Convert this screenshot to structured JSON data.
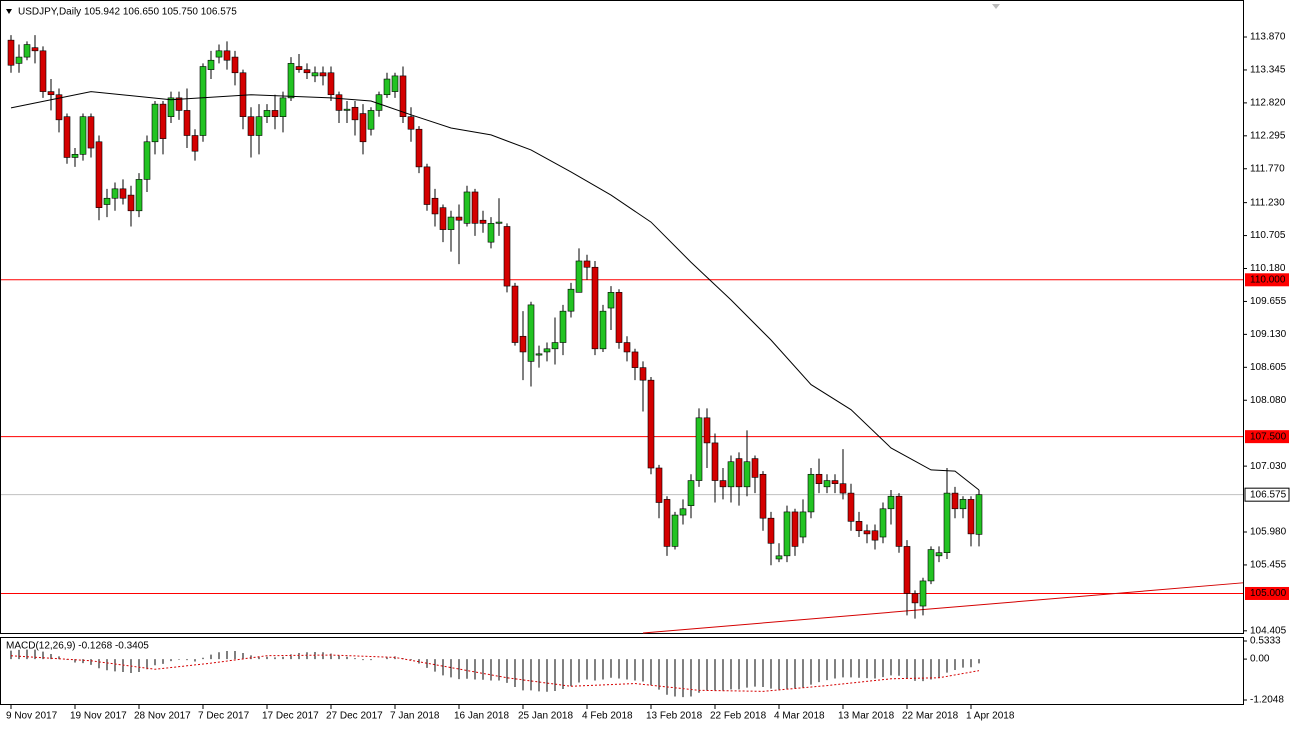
{
  "chart_data": {
    "type": "candlestick",
    "header": "USDJPY,Daily 105.942 106.650 105.750 106.575",
    "up_color": "#22c322",
    "down_color": "#d40000",
    "ma_color": "#000000",
    "open": [
      113.82,
      113.45,
      113.55,
      113.7,
      113.65,
      113.0,
      112.95,
      112.6,
      111.95,
      112.0,
      112.6,
      112.2,
      111.2,
      111.3,
      111.45,
      111.35,
      111.1,
      111.6,
      112.2,
      112.8,
      112.6,
      112.9,
      112.7,
      112.3,
      112.3,
      113.35,
      113.55,
      113.65,
      113.55,
      113.3,
      112.6,
      112.3,
      112.6,
      112.7,
      112.6,
      112.9,
      113.4,
      113.35,
      113.25,
      113.3,
      113.3,
      112.95,
      112.7,
      112.75,
      112.65,
      112.4,
      112.7,
      112.95,
      113.0,
      113.25,
      112.6,
      112.4,
      111.8,
      111.3,
      111.15,
      110.8,
      111.0,
      110.9,
      111.4,
      110.95,
      110.6,
      110.9,
      110.85,
      109.9,
      109.1,
      108.7,
      108.8,
      108.85,
      108.9,
      109.0,
      109.5,
      109.8,
      110.3,
      110.2,
      108.9,
      109.55,
      109.8,
      109.0,
      108.85,
      108.6,
      108.4,
      107.0,
      106.5,
      105.75,
      106.25,
      106.4,
      106.8,
      107.8,
      107.4,
      106.8,
      106.7,
      107.15,
      106.7,
      107.15,
      106.9,
      106.2,
      105.55,
      105.6,
      106.3,
      105.9,
      106.3,
      106.9,
      106.7,
      106.8,
      106.75,
      106.6,
      106.15,
      106.0,
      106.0,
      105.9,
      106.35,
      106.55,
      105.75,
      105.0,
      104.8,
      105.2,
      105.6,
      105.65,
      106.6,
      106.35,
      106.5,
      105.942
    ],
    "high": [
      113.9,
      113.75,
      113.8,
      113.9,
      113.72,
      113.2,
      113.05,
      112.65,
      112.1,
      112.65,
      112.65,
      112.3,
      111.45,
      111.55,
      111.6,
      111.5,
      111.7,
      112.3,
      112.85,
      112.85,
      113.0,
      113.0,
      113.05,
      112.4,
      113.45,
      113.65,
      113.75,
      113.8,
      113.65,
      113.35,
      112.75,
      112.8,
      112.8,
      112.95,
      113.0,
      113.55,
      113.6,
      113.45,
      113.4,
      113.4,
      113.4,
      113.0,
      112.85,
      112.85,
      112.8,
      112.75,
      113.0,
      113.3,
      113.3,
      113.4,
      112.75,
      112.45,
      111.85,
      111.45,
      111.2,
      111.1,
      111.2,
      111.5,
      111.45,
      111.1,
      111.0,
      111.3,
      110.9,
      109.95,
      109.5,
      109.65,
      108.95,
      109.0,
      109.4,
      109.6,
      109.95,
      110.5,
      110.4,
      110.3,
      109.6,
      109.9,
      109.85,
      109.1,
      108.9,
      108.7,
      108.45,
      107.05,
      106.55,
      106.3,
      106.5,
      106.9,
      107.95,
      107.95,
      107.55,
      107.0,
      107.2,
      107.25,
      107.6,
      107.2,
      106.95,
      106.3,
      105.8,
      106.4,
      106.35,
      106.5,
      107.0,
      107.15,
      106.9,
      106.9,
      107.3,
      106.75,
      106.3,
      106.1,
      106.1,
      106.45,
      106.65,
      106.6,
      105.85,
      105.05,
      105.25,
      105.75,
      105.75,
      107.0,
      106.7,
      106.55,
      106.55,
      106.65
    ],
    "low": [
      113.3,
      113.3,
      113.5,
      113.45,
      112.9,
      112.7,
      112.35,
      111.85,
      111.8,
      111.9,
      111.95,
      110.95,
      111.0,
      111.1,
      111.2,
      110.85,
      111.0,
      111.4,
      112.0,
      112.0,
      112.5,
      112.55,
      112.1,
      111.9,
      112.2,
      113.2,
      113.45,
      113.35,
      113.1,
      112.4,
      111.95,
      112.0,
      112.5,
      112.4,
      112.35,
      112.85,
      113.3,
      113.2,
      113.15,
      113.1,
      112.85,
      112.5,
      112.5,
      112.3,
      112.0,
      112.3,
      112.6,
      112.9,
      112.9,
      112.5,
      112.2,
      111.7,
      111.1,
      110.85,
      110.6,
      110.45,
      110.25,
      110.85,
      110.7,
      110.75,
      110.5,
      110.7,
      109.8,
      108.95,
      108.4,
      108.3,
      108.6,
      108.7,
      108.65,
      108.8,
      109.4,
      109.8,
      110.0,
      108.8,
      108.85,
      109.2,
      108.9,
      108.7,
      108.4,
      107.9,
      106.9,
      106.2,
      105.6,
      105.7,
      106.1,
      106.2,
      106.7,
      107.0,
      106.45,
      106.5,
      106.45,
      106.4,
      106.55,
      106.6,
      106.0,
      105.45,
      105.5,
      105.5,
      105.6,
      105.8,
      106.2,
      106.6,
      106.6,
      106.6,
      106.5,
      106.0,
      105.9,
      105.8,
      105.7,
      105.8,
      106.1,
      105.65,
      104.65,
      104.6,
      104.65,
      105.15,
      105.5,
      105.55,
      106.2,
      106.2,
      105.75,
      105.75
    ],
    "close": [
      113.42,
      113.55,
      113.75,
      113.65,
      113.0,
      112.95,
      112.55,
      111.95,
      112.0,
      112.6,
      112.1,
      111.15,
      111.3,
      111.45,
      111.3,
      111.1,
      111.6,
      112.2,
      112.8,
      112.25,
      112.9,
      112.7,
      112.3,
      112.05,
      113.4,
      113.5,
      113.65,
      113.5,
      113.3,
      112.6,
      112.3,
      112.6,
      112.7,
      112.6,
      112.9,
      113.45,
      113.35,
      113.3,
      113.3,
      113.25,
      112.95,
      112.7,
      112.72,
      112.55,
      112.2,
      112.7,
      112.95,
      113.2,
      113.25,
      112.6,
      112.4,
      111.8,
      111.2,
      111.05,
      110.8,
      111.0,
      110.95,
      111.4,
      110.9,
      110.9,
      110.9,
      110.92,
      109.9,
      109.0,
      108.85,
      109.6,
      108.82,
      108.9,
      109.0,
      109.5,
      109.85,
      110.3,
      110.2,
      108.9,
      109.5,
      109.8,
      109.0,
      108.85,
      108.6,
      108.4,
      107.0,
      106.45,
      105.75,
      106.25,
      106.35,
      106.8,
      107.8,
      107.4,
      106.8,
      106.7,
      107.1,
      106.7,
      107.1,
      106.85,
      106.2,
      105.8,
      105.6,
      106.3,
      105.75,
      106.3,
      106.9,
      106.75,
      106.8,
      106.75,
      106.6,
      106.15,
      106.0,
      105.95,
      105.85,
      106.35,
      106.55,
      105.75,
      105.0,
      104.85,
      105.2,
      105.7,
      105.65,
      106.6,
      106.35,
      106.5,
      105.95,
      106.575
    ],
    "ma": {
      "x": [
        0,
        10,
        20,
        30,
        40,
        45,
        50,
        55,
        60,
        65,
        70,
        75,
        80,
        85,
        90,
        95,
        100,
        105,
        110,
        115,
        118,
        121
      ],
      "values": [
        112.74,
        113.0,
        112.87,
        112.95,
        112.9,
        112.85,
        112.63,
        112.42,
        112.31,
        112.07,
        111.72,
        111.35,
        110.92,
        110.28,
        109.68,
        109.04,
        108.33,
        107.93,
        107.32,
        106.97,
        106.95,
        106.65
      ]
    },
    "levels": [
      {
        "value": 110,
        "label": "110.000",
        "color": "#ff0000"
      },
      {
        "value": 107.5,
        "label": "107.500",
        "color": "#ff0000"
      },
      {
        "value": 105,
        "label": "105.000",
        "color": "#ff0000"
      }
    ],
    "price_line": 106.575,
    "trendline": {
      "x": [
        79,
        154
      ],
      "values": [
        104.37,
        105.17
      ],
      "color": "#d40000"
    },
    "ylim": [
      104.37,
      114.46
    ],
    "yticks": [
      {
        "value": 113.87,
        "label": "113.870"
      },
      113.345,
      {
        "value": 112.82,
        "label": "112.820"
      },
      112.295,
      {
        "value": 111.77,
        "label": "111.770"
      },
      {
        "value": 111.23,
        "label": "111.230"
      },
      110.705,
      {
        "value": 110.18,
        "label": "110.180"
      },
      109.655,
      {
        "value": 109.13,
        "label": "109.130"
      },
      108.605,
      {
        "value": 108.08,
        "label": "108.080"
      },
      {
        "value": 107.03,
        "label": "107.030"
      },
      {
        "value": 105.98,
        "label": "105.980"
      },
      105.455,
      104.405
    ],
    "x_labels": [
      "9 Nov 2017",
      "19 Nov 2017",
      "28 Nov 2017",
      "7 Dec 2017",
      "17 Dec 2017",
      "27 Dec 2017",
      "7 Jan 2018",
      "16 Jan 2018",
      "25 Jan 2018",
      "4 Feb 2018",
      "13 Feb 2018",
      "22 Feb 2018",
      "4 Mar 2018",
      "13 Mar 2018",
      "22 Mar 2018",
      "1 Apr 2018"
    ],
    "x_label_index": [
      0,
      8,
      16,
      24,
      32,
      40,
      48,
      56,
      64,
      72,
      80,
      88,
      96,
      104,
      112,
      120
    ],
    "macd": {
      "header": "MACD(12,26,9) -0.1268 -0.3405",
      "ylim": [
        -1.352,
        0.651
      ],
      "yticks": [
        0.5333,
        {
          "value": 0,
          "label": "0.00"
        },
        -1.2048
      ],
      "values": [
        0.25,
        0.27,
        0.28,
        0.28,
        0.22,
        0.15,
        0.08,
        -0.02,
        -0.1,
        -0.12,
        -0.17,
        -0.27,
        -0.33,
        -0.36,
        -0.38,
        -0.41,
        -0.38,
        -0.3,
        -0.18,
        -0.14,
        -0.06,
        -0.02,
        -0.03,
        -0.07,
        0.04,
        0.13,
        0.2,
        0.24,
        0.24,
        0.18,
        0.11,
        0.08,
        0.07,
        0.05,
        0.07,
        0.14,
        0.18,
        0.2,
        0.21,
        0.2,
        0.16,
        0.11,
        0.07,
        0.03,
        -0.03,
        -0.03,
        0.0,
        0.05,
        0.08,
        0.03,
        -0.03,
        -0.13,
        -0.26,
        -0.37,
        -0.48,
        -0.54,
        -0.59,
        -0.58,
        -0.6,
        -0.61,
        -0.63,
        -0.63,
        -0.7,
        -0.82,
        -0.92,
        -0.92,
        -0.95,
        -0.96,
        -0.94,
        -0.88,
        -0.8,
        -0.69,
        -0.6,
        -0.63,
        -0.6,
        -0.55,
        -0.57,
        -0.6,
        -0.63,
        -0.66,
        -0.77,
        -0.9,
        -1.05,
        -1.1,
        -1.12,
        -1.1,
        -0.99,
        -0.93,
        -0.93,
        -0.93,
        -0.89,
        -0.89,
        -0.84,
        -0.81,
        -0.82,
        -0.87,
        -0.92,
        -0.88,
        -0.88,
        -0.84,
        -0.75,
        -0.68,
        -0.62,
        -0.57,
        -0.54,
        -0.54,
        -0.55,
        -0.56,
        -0.57,
        -0.53,
        -0.48,
        -0.49,
        -0.57,
        -0.64,
        -0.65,
        -0.6,
        -0.55,
        -0.4,
        -0.32,
        -0.25,
        -0.24,
        -0.1268
      ],
      "signal": {
        "x": [
          0,
          10,
          18,
          25,
          32,
          40,
          48,
          55,
          62,
          70,
          78,
          86,
          94,
          102,
          110,
          116,
          121
        ],
        "values": [
          0.1,
          -0.05,
          -0.3,
          -0.12,
          0.1,
          0.12,
          0.05,
          -0.25,
          -0.55,
          -0.8,
          -0.72,
          -0.92,
          -0.95,
          -0.78,
          -0.58,
          -0.55,
          -0.3405
        ],
        "color": "#d40000"
      }
    }
  }
}
